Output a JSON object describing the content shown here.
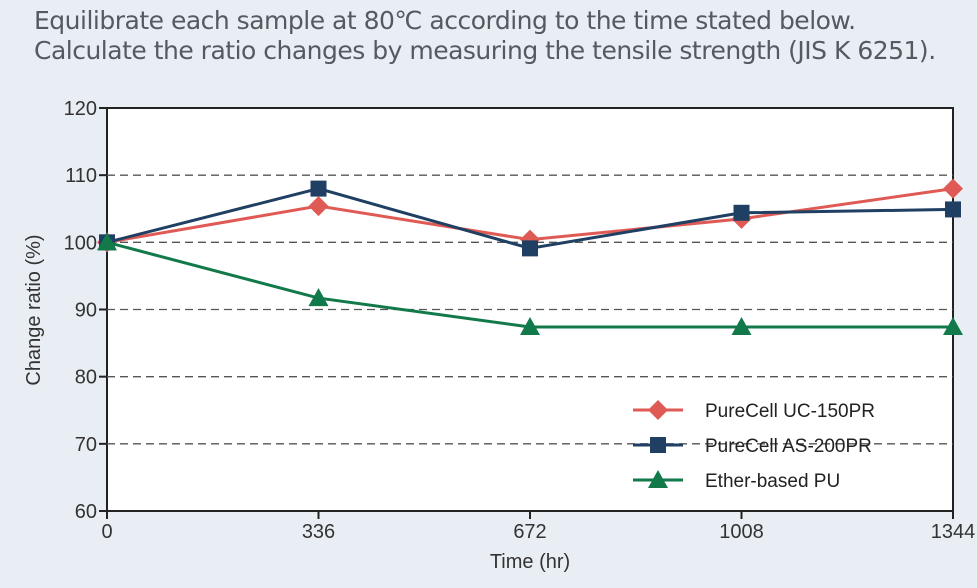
{
  "header": {
    "line1": "Equilibrate each sample at 80℃ according to the time stated below.",
    "line2": "Calculate the ratio changes by measuring the tensile strength (JIS K 6251)."
  },
  "chart_data": {
    "type": "line",
    "title": "",
    "xlabel": "Time (hr)",
    "ylabel": "Change ratio (%)",
    "x": [
      0,
      336,
      672,
      1008,
      1344
    ],
    "x_ticks": [
      "0",
      "336",
      "672",
      "1008",
      "1344"
    ],
    "y_ticks": [
      "60",
      "70",
      "80",
      "90",
      "100",
      "110",
      "120"
    ],
    "xlim": [
      0,
      1344
    ],
    "ylim": [
      60,
      120
    ],
    "grid": "horizontal dashed",
    "legend_position": "bottom-right",
    "series": [
      {
        "name": "PureCell UC-150PR",
        "marker": "diamond",
        "color": "#e05a55",
        "values": [
          100,
          105.4,
          100.4,
          103.5,
          108
        ]
      },
      {
        "name": "PureCell AS-200PR",
        "marker": "square",
        "color": "#1f3f63",
        "values": [
          100,
          108,
          99.1,
          104.4,
          104.9
        ]
      },
      {
        "name": "Ether-based PU",
        "marker": "triangle",
        "color": "#127a4a",
        "values": [
          100,
          91.7,
          87.4,
          87.4,
          87.4
        ]
      }
    ]
  }
}
